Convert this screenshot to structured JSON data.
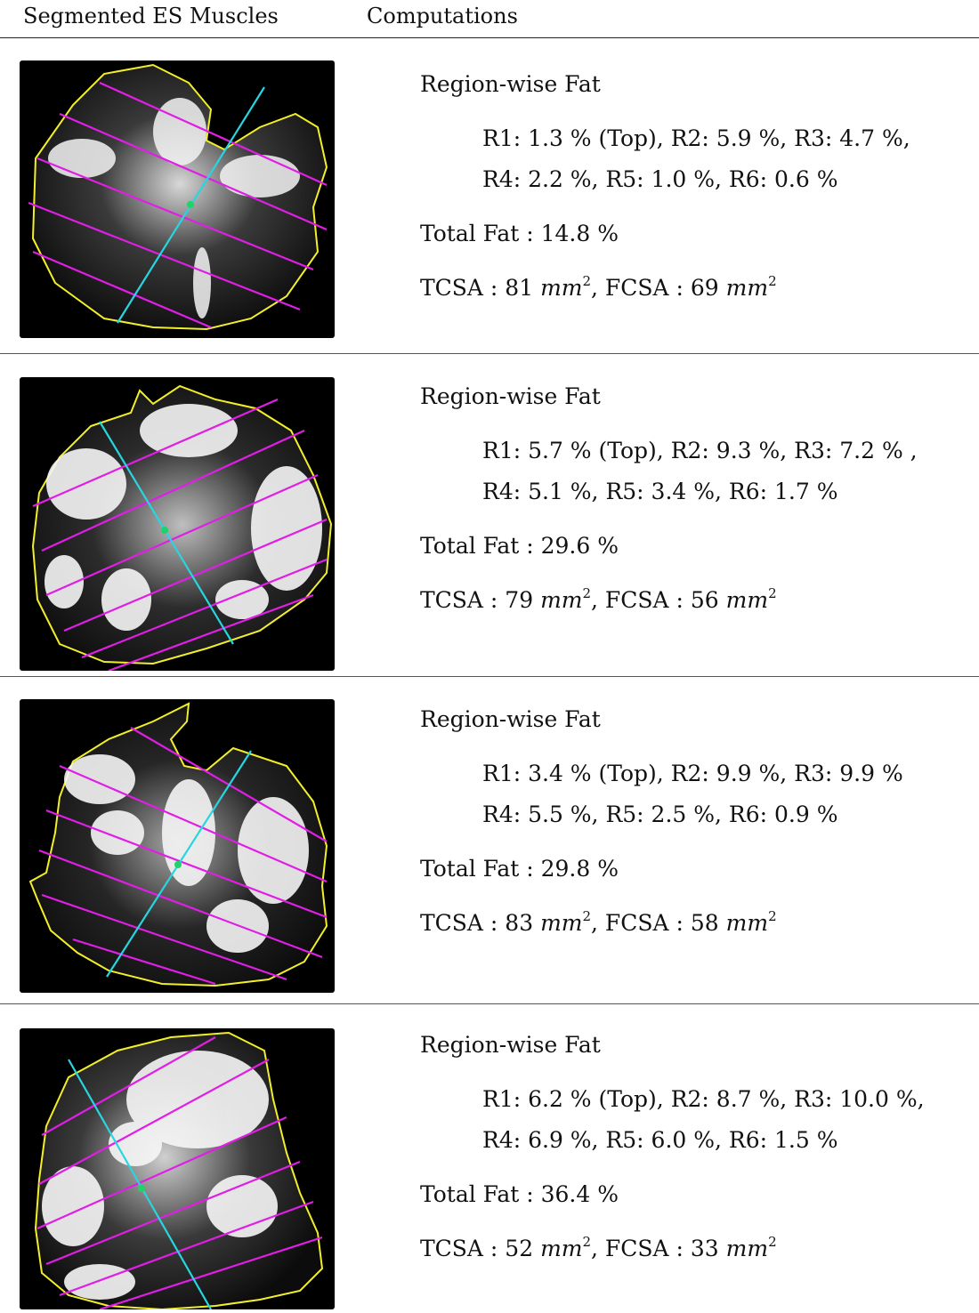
{
  "header": {
    "col1": "Segmented ES Muscles",
    "col2": "Computations"
  },
  "rows": [
    {
      "heading": "Region-wise Fat",
      "regions_line1": "R1: 1.3 % (Top), R2: 5.9 %, R3: 4.7 %,",
      "regions_line2": "R4: 2.2 %, R5: 1.0 %, R6: 0.6 %",
      "total": "Total Fat : 14.8 %",
      "tcsa_prefix": "TCSA : 81 ",
      "fcsa_prefix": ", FCSA : 69 ",
      "unit": "mm",
      "unit_exp": "2"
    },
    {
      "heading": "Region-wise Fat",
      "regions_line1": "R1: 5.7 % (Top), R2: 9.3 %, R3: 7.2 % ,",
      "regions_line2": "R4: 5.1 %, R5: 3.4 %, R6: 1.7 %",
      "total": "Total Fat : 29.6 %",
      "tcsa_prefix": "TCSA : 79 ",
      "fcsa_prefix": ", FCSA : 56 ",
      "unit": "mm",
      "unit_exp": "2"
    },
    {
      "heading": "Region-wise Fat",
      "regions_line1": "R1: 3.4 % (Top), R2: 9.9 %, R3: 9.9 %",
      "regions_line2": "R4: 5.5 %, R5: 2.5 %, R6: 0.9 %",
      "total": "Total Fat : 29.8 %",
      "tcsa_prefix": "TCSA : 83 ",
      "fcsa_prefix": ", FCSA : 58 ",
      "unit": "mm",
      "unit_exp": "2"
    },
    {
      "heading": "Region-wise Fat",
      "regions_line1": "R1: 6.2 % (Top), R2: 8.7 %, R3: 10.0 %,",
      "regions_line2": "R4: 6.9 %, R5: 6.0 %, R6: 1.5 %",
      "total": "Total Fat : 36.4 %",
      "tcsa_prefix": "TCSA : 52 ",
      "fcsa_prefix": ", FCSA : 33 ",
      "unit": "mm",
      "unit_exp": "2"
    }
  ],
  "colors": {
    "outline": "#f2ef2a",
    "region_lines": "#e01ee6",
    "axis_line": "#27d6e0",
    "center_point": "#1fd36a"
  }
}
